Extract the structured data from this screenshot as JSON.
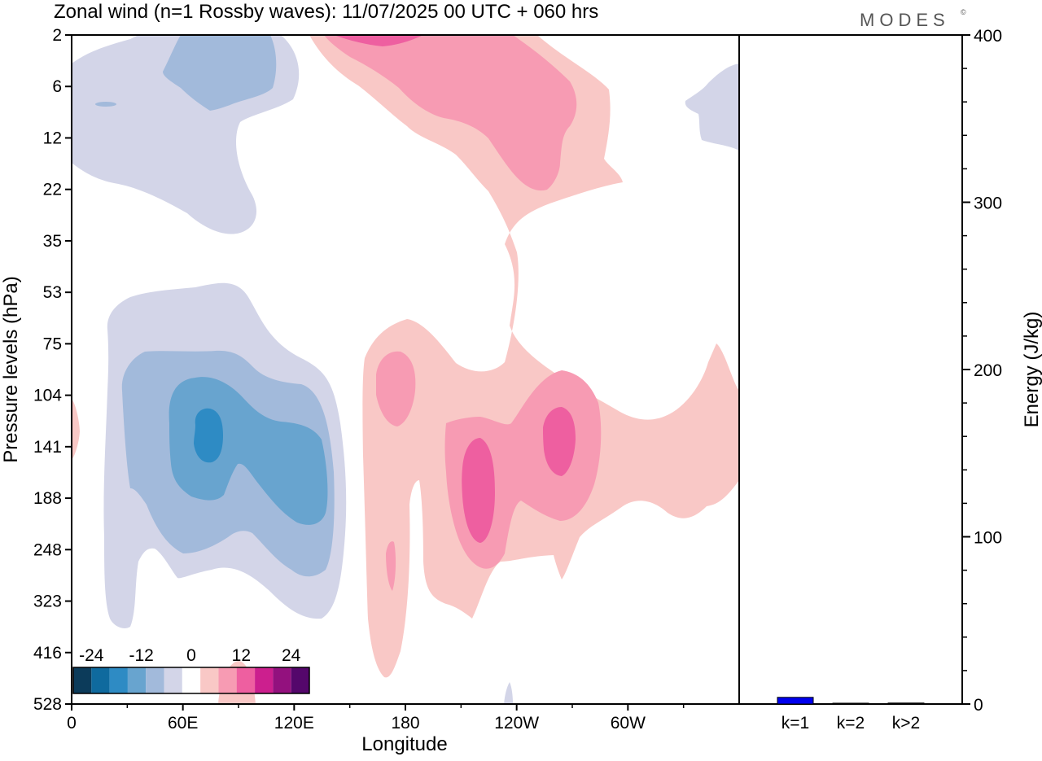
{
  "title": "Zonal wind (n=1 Rossby waves):  11/07/2025  00 UTC  + 060 hrs",
  "brand": "MODES",
  "brand_mark": "©",
  "chart_data": [
    {
      "type": "heatmap",
      "title": "Zonal wind (n=1 Rossby waves):  11/07/2025  00 UTC  + 060 hrs",
      "xlabel": "Longitude",
      "ylabel": "Pressure levels (hPa)",
      "x_ticks": [
        "0",
        "60E",
        "120E",
        "180",
        "120W",
        "60W"
      ],
      "x_tick_values": [
        0,
        60,
        120,
        180,
        240,
        300
      ],
      "xlim": [
        0,
        360
      ],
      "y_ticks": [
        "2",
        "6",
        "12",
        "22",
        "35",
        "53",
        "75",
        "104",
        "141",
        "188",
        "248",
        "323",
        "416",
        "528"
      ],
      "colorbar": {
        "labels": [
          "-24",
          "-12",
          "0",
          "12",
          "24"
        ],
        "levels": [
          -30,
          -26,
          -22,
          -18,
          -14,
          -10,
          -6,
          -2,
          2,
          6,
          10,
          14,
          18,
          22,
          26,
          30
        ],
        "colors": [
          "#0c3b5a",
          "#0f6a9e",
          "#2e8bc4",
          "#68a4cf",
          "#a2badb",
          "#d3d5e8",
          "#ffffff",
          "#f9c8c6",
          "#f79bb3",
          "#ee5fa0",
          "#cc1f8e",
          "#93117e",
          "#54076b"
        ]
      },
      "features": [
        {
          "name": "upper-stratosphere-easterly",
          "sign": "negative",
          "lon_range": [
            0,
            100
          ],
          "pressure_range": [
            2,
            35
          ],
          "peak": -10
        },
        {
          "name": "upper-stratosphere-westerly",
          "sign": "positive",
          "lon_range": [
            130,
            300
          ],
          "pressure_range": [
            2,
            30
          ],
          "peak": 14
        },
        {
          "name": "upper-troposphere-easterly-core",
          "sign": "negative",
          "lon_range": [
            15,
            150
          ],
          "pressure_range": [
            53,
            400
          ],
          "peak": -26
        },
        {
          "name": "upper-troposphere-westerly-core-1",
          "sign": "positive",
          "lon_range": [
            160,
            260
          ],
          "pressure_range": [
            104,
            323
          ],
          "peak": 20
        },
        {
          "name": "upper-troposphere-westerly-core-2",
          "sign": "positive",
          "lon_range": [
            240,
            310
          ],
          "pressure_range": [
            104,
            188
          ],
          "peak": 18
        }
      ]
    },
    {
      "type": "bar",
      "categories": [
        "k=1",
        "k=2",
        "k>2"
      ],
      "values": [
        4,
        0.5,
        0.6
      ],
      "ylabel": "Energy (J/kg)",
      "ylim": [
        0,
        400
      ],
      "y_ticks": [
        "0",
        "100",
        "200",
        "300",
        "400"
      ],
      "y_tick_values": [
        0,
        100,
        200,
        300,
        400
      ],
      "bar_colors": [
        "#0000ee",
        "#000000",
        "#000000"
      ]
    }
  ]
}
